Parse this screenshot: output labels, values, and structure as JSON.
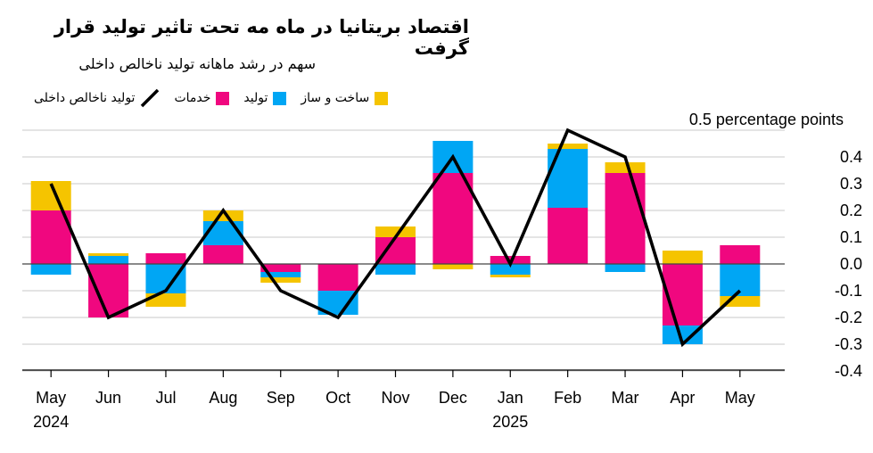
{
  "title": "اقتصاد بریتانیا در ماه مه تحت تاثیر تولید قرار گرفت",
  "subtitle": "سهم در رشد ماهانه تولید ناخالص داخلی",
  "unit_label": "0.5 percentage points",
  "colors": {
    "construction": "#f5c400",
    "production": "#00a6f4",
    "services": "#f0077f",
    "gdp": "#000000",
    "grid": "#c8c8c8",
    "zero": "#444444"
  },
  "legend": [
    {
      "key": "gdp",
      "label": "تولید ناخالص داخلی",
      "kind": "line"
    },
    {
      "key": "services",
      "label": "خدمات",
      "kind": "swatch"
    },
    {
      "key": "production",
      "label": "تولید",
      "kind": "swatch"
    },
    {
      "key": "construction",
      "label": "ساخت و ساز",
      "kind": "swatch"
    }
  ],
  "chart_data": {
    "type": "bar",
    "stacked": true,
    "categories": [
      "May",
      "Jun",
      "Jul",
      "Aug",
      "Sep",
      "Oct",
      "Nov",
      "Dec",
      "Jan",
      "Feb",
      "Mar",
      "Apr",
      "May"
    ],
    "year_labels": [
      {
        "index": 0,
        "label": "2024"
      },
      {
        "index": 8,
        "label": "2025"
      }
    ],
    "ylim": [
      -0.4,
      0.5
    ],
    "yticks": [
      -0.4,
      -0.3,
      -0.2,
      -0.1,
      0.0,
      0.1,
      0.2,
      0.3,
      0.4
    ],
    "ytick_labels": [
      "-0.4",
      "-0.3",
      "-0.2",
      "-0.1",
      "0.0",
      "0.1",
      "0.2",
      "0.3",
      "0.4"
    ],
    "grid": true,
    "series": [
      {
        "name": "خدمات",
        "key": "services",
        "values": [
          0.2,
          -0.2,
          0.04,
          0.07,
          -0.03,
          -0.1,
          0.1,
          0.34,
          0.03,
          0.21,
          0.34,
          -0.23,
          0.07
        ]
      },
      {
        "name": "تولید",
        "key": "production",
        "values": [
          -0.04,
          0.03,
          -0.11,
          0.09,
          -0.02,
          -0.09,
          -0.04,
          0.12,
          -0.04,
          0.22,
          -0.03,
          -0.07,
          -0.12
        ]
      },
      {
        "name": "ساخت و ساز",
        "key": "construction",
        "values": [
          0.11,
          0.01,
          -0.05,
          0.04,
          -0.02,
          0.0,
          0.04,
          -0.02,
          -0.01,
          0.02,
          0.04,
          0.05,
          -0.04
        ]
      }
    ],
    "line": {
      "name": "تولید ناخالص داخلی",
      "key": "gdp",
      "values": [
        0.3,
        -0.2,
        -0.1,
        0.2,
        -0.1,
        -0.2,
        0.1,
        0.4,
        0.0,
        0.5,
        0.4,
        -0.3,
        -0.1
      ]
    }
  }
}
